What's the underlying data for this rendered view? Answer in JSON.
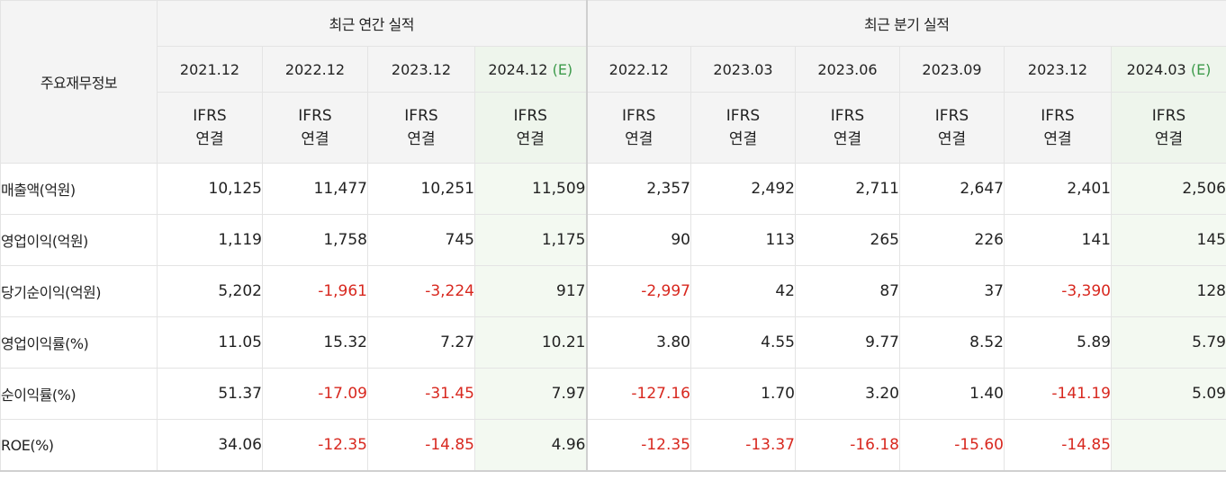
{
  "header": {
    "row_label": "주요재무정보",
    "annual_group": "최근 연간 실적",
    "quarter_group": "최근 분기 실적"
  },
  "periods": [
    {
      "label": "2021.12",
      "mark": "",
      "estimate": false
    },
    {
      "label": "2022.12",
      "mark": "",
      "estimate": false
    },
    {
      "label": "2023.12",
      "mark": "",
      "estimate": false
    },
    {
      "label": "2024.12",
      "mark": "(E)",
      "estimate": true
    },
    {
      "label": "2022.12",
      "mark": "",
      "estimate": false
    },
    {
      "label": "2023.03",
      "mark": "",
      "estimate": false
    },
    {
      "label": "2023.06",
      "mark": "",
      "estimate": false
    },
    {
      "label": "2023.09",
      "mark": "",
      "estimate": false
    },
    {
      "label": "2023.12",
      "mark": "",
      "estimate": false
    },
    {
      "label": "2024.03",
      "mark": "(E)",
      "estimate": true
    }
  ],
  "basis": {
    "line1": "IFRS",
    "line2": "연결"
  },
  "rows": [
    {
      "label": "매출액(억원)",
      "values": [
        "10,125",
        "11,477",
        "10,251",
        "11,509",
        "2,357",
        "2,492",
        "2,711",
        "2,647",
        "2,401",
        "2,506"
      ]
    },
    {
      "label": "영업이익(억원)",
      "values": [
        "1,119",
        "1,758",
        "745",
        "1,175",
        "90",
        "113",
        "265",
        "226",
        "141",
        "145"
      ]
    },
    {
      "label": "당기순이익(억원)",
      "values": [
        "5,202",
        "-1,961",
        "-3,224",
        "917",
        "-2,997",
        "42",
        "87",
        "37",
        "-3,390",
        "128"
      ]
    },
    {
      "label": "영업이익률(%)",
      "values": [
        "11.05",
        "15.32",
        "7.27",
        "10.21",
        "3.80",
        "4.55",
        "9.77",
        "8.52",
        "5.89",
        "5.79"
      ]
    },
    {
      "label": "순이익률(%)",
      "values": [
        "51.37",
        "-17.09",
        "-31.45",
        "7.97",
        "-127.16",
        "1.70",
        "3.20",
        "1.40",
        "-141.19",
        "5.09"
      ]
    },
    {
      "label": "ROE(%)",
      "values": [
        "34.06",
        "-12.35",
        "-14.85",
        "4.96",
        "-12.35",
        "-13.37",
        "-16.18",
        "-15.60",
        "-14.85",
        ""
      ]
    }
  ],
  "colors": {
    "negative": "#d8281f",
    "basis_text": "#e07a3e",
    "estimate_mark": "#3c9a4a",
    "estimate_bg": "#f3f9f1",
    "header_bg": "#f4f4f4"
  }
}
